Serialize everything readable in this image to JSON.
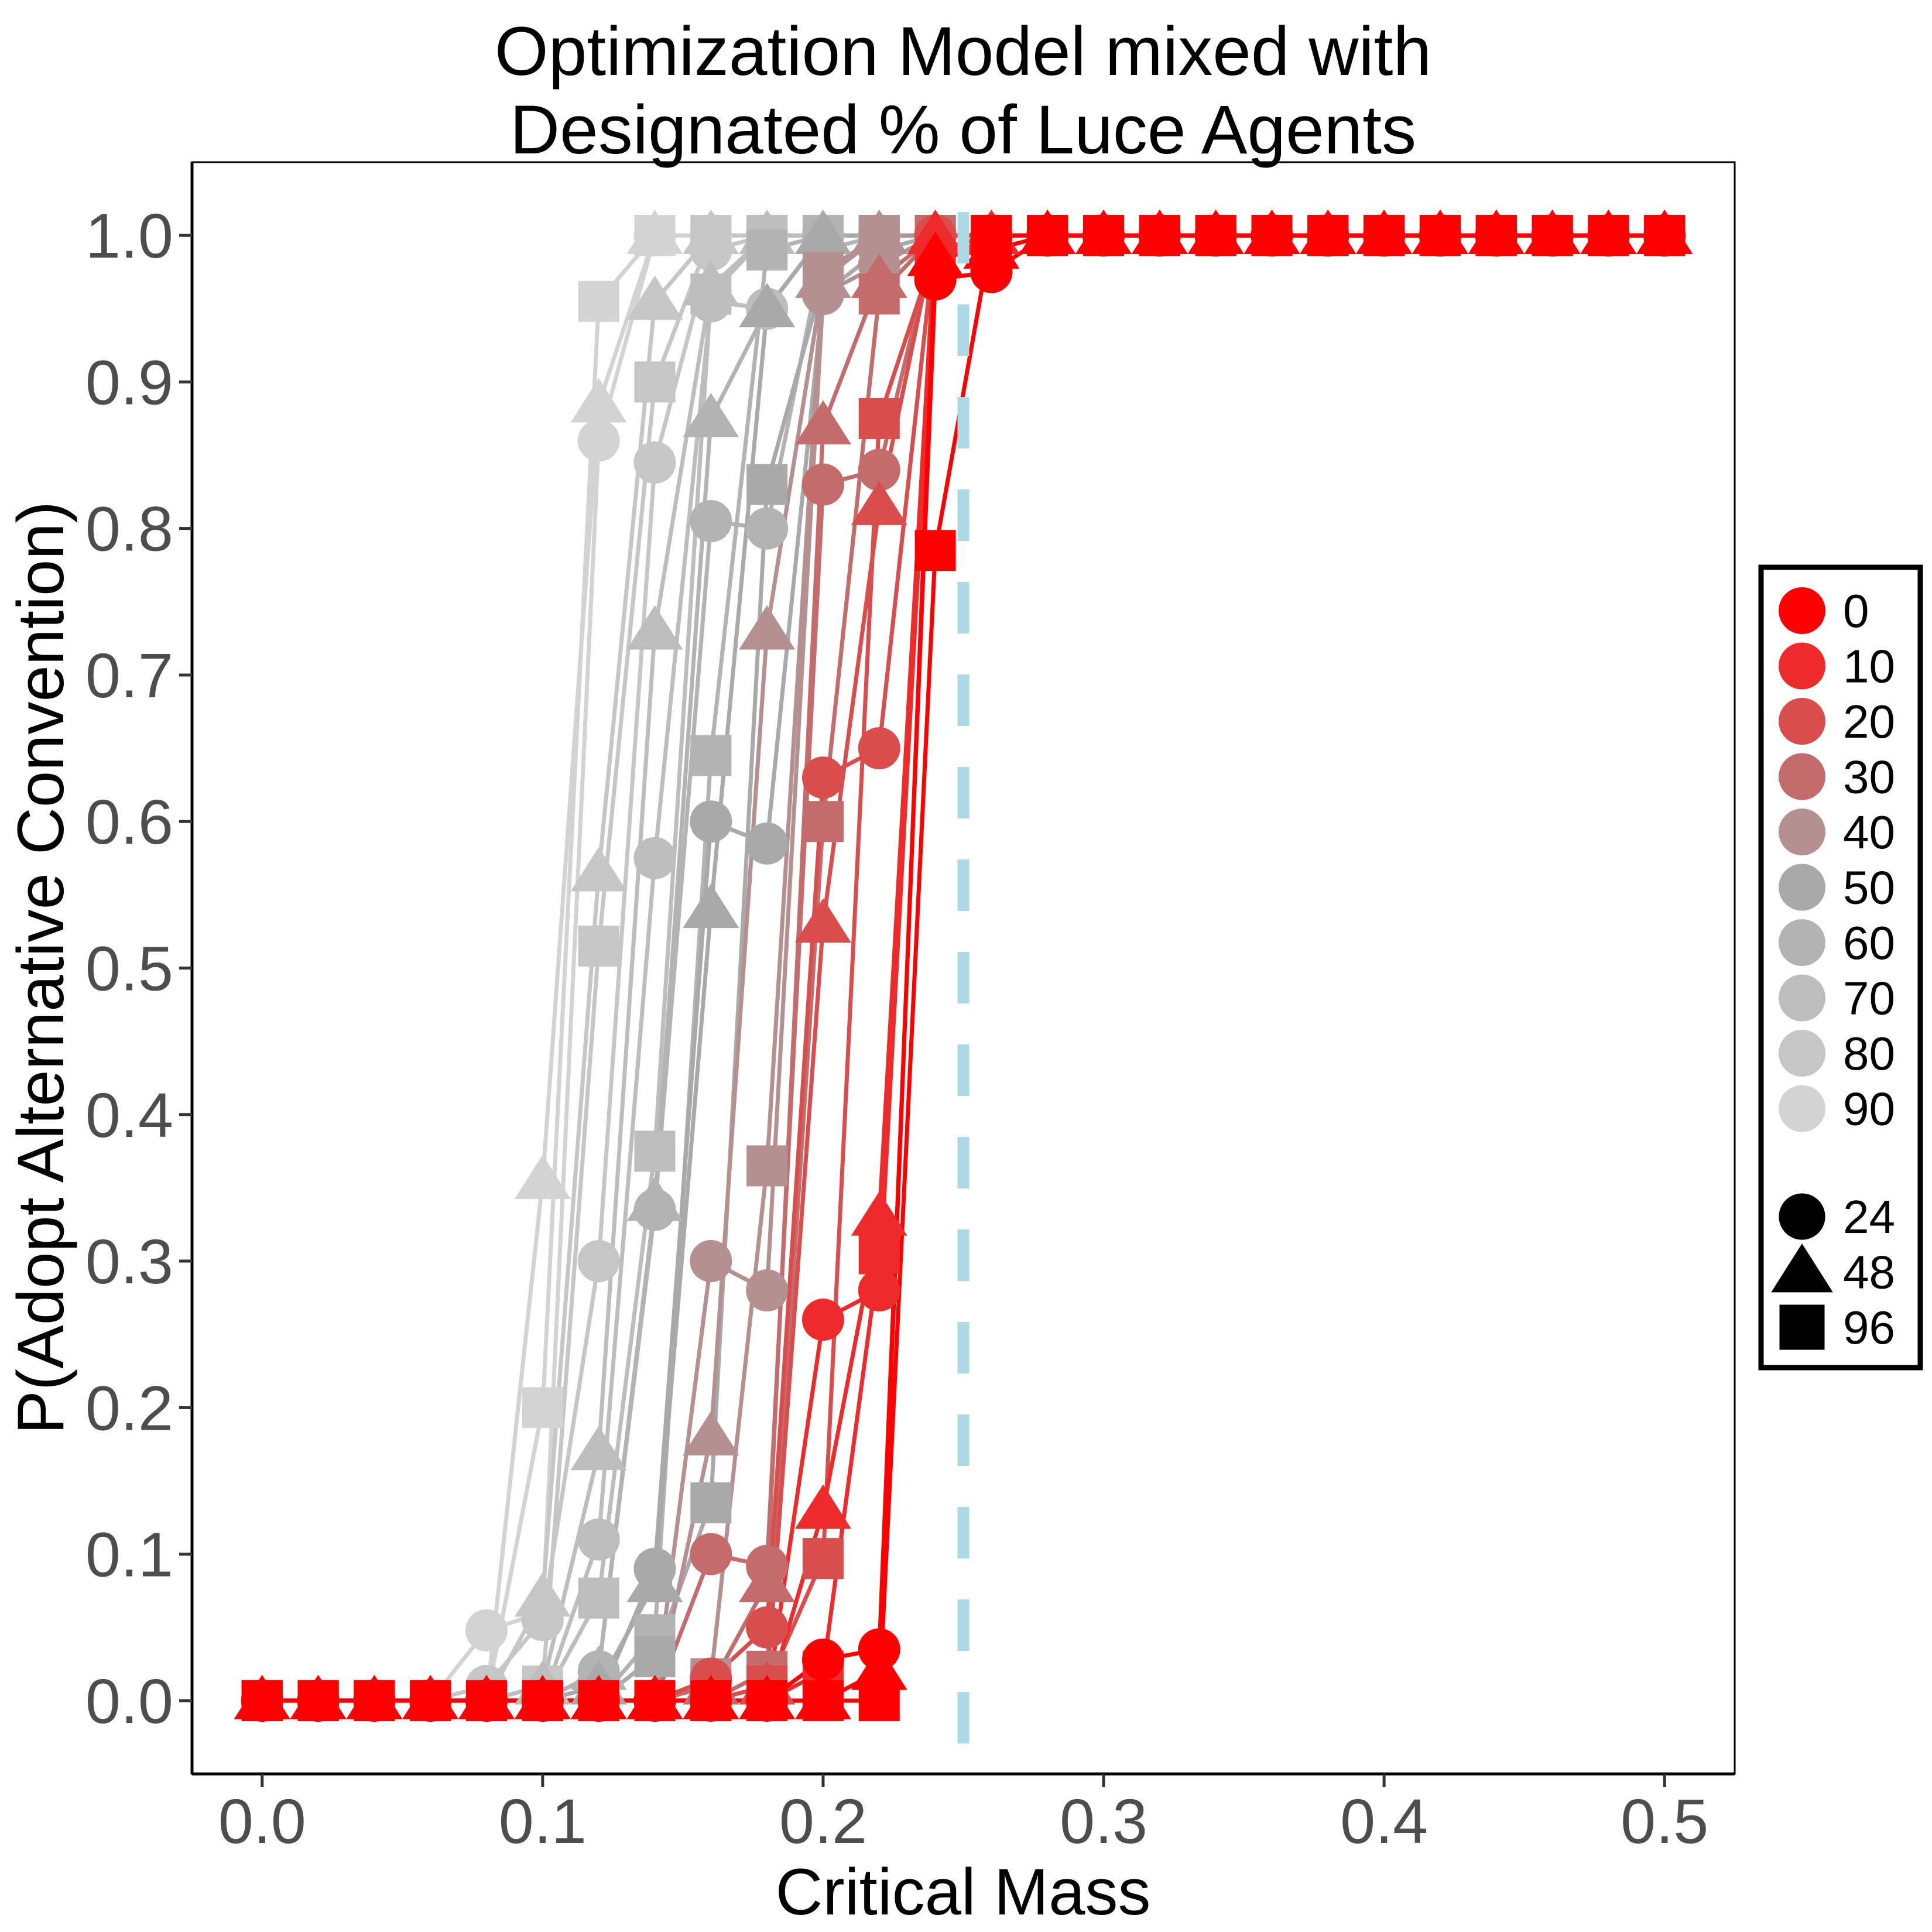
{
  "chart_data": {
    "type": "line",
    "title": [
      "Optimization Model mixed with",
      "Designated % of Luce Agents"
    ],
    "xlabel": "Critical Mass",
    "ylabel": "P(Adopt Alternative Convention)",
    "xlim": [
      -0.025,
      0.525
    ],
    "ylim": [
      -0.05,
      1.05
    ],
    "x_ticks": [
      0.0,
      0.1,
      0.2,
      0.3,
      0.4,
      0.5
    ],
    "x_tick_labels": [
      "0.0",
      "0.1",
      "0.2",
      "0.3",
      "0.4",
      "0.5"
    ],
    "y_ticks": [
      0.0,
      0.1,
      0.2,
      0.3,
      0.4,
      0.5,
      0.6,
      0.7,
      0.8,
      0.9,
      1.0
    ],
    "y_tick_labels": [
      "0.0",
      "0.1",
      "0.2",
      "0.3",
      "0.4",
      "0.5",
      "0.6",
      "0.7",
      "0.8",
      "0.9",
      "1.0"
    ],
    "grid": false,
    "legend_position": "right",
    "reference_line": {
      "x": 0.25,
      "style": "dashed",
      "color": "#add8e6"
    },
    "x": [
      0.0,
      0.02,
      0.04,
      0.06,
      0.08,
      0.1,
      0.12,
      0.14,
      0.16,
      0.18,
      0.2,
      0.22,
      0.24,
      0.26,
      0.28,
      0.3,
      0.32,
      0.34,
      0.36,
      0.38,
      0.4,
      0.42,
      0.44,
      0.46,
      0.48,
      0.5
    ],
    "color_legend": [
      {
        "label": "0",
        "color": "#ff0000"
      },
      {
        "label": "10",
        "color": "#ed2b2b"
      },
      {
        "label": "20",
        "color": "#da4d4d"
      },
      {
        "label": "30",
        "color": "#c46b6b"
      },
      {
        "label": "40",
        "color": "#b49090"
      },
      {
        "label": "50",
        "color": "#a9a9a9"
      },
      {
        "label": "60",
        "color": "#b3b3b3"
      },
      {
        "label": "70",
        "color": "#bdbdbd"
      },
      {
        "label": "80",
        "color": "#c6c6c6"
      },
      {
        "label": "90",
        "color": "#d3d3d3"
      }
    ],
    "shape_legend": [
      {
        "label": "24",
        "shape": "circle"
      },
      {
        "label": "48",
        "shape": "triangle"
      },
      {
        "label": "96",
        "shape": "square"
      }
    ],
    "series": [
      {
        "luce_pct": "0",
        "size": "24",
        "values": [
          0,
          0,
          0,
          0,
          0,
          0,
          0,
          0,
          0,
          0,
          0.028,
          0.035,
          0.97,
          0.975,
          1,
          1,
          1,
          1,
          1,
          1,
          1,
          1,
          1,
          1,
          1,
          1
        ]
      },
      {
        "luce_pct": "0",
        "size": "48",
        "values": [
          0,
          0,
          0,
          0,
          0,
          0,
          0,
          0,
          0,
          0,
          0,
          0.02,
          0.985,
          0.99,
          1,
          1,
          1,
          1,
          1,
          1,
          1,
          1,
          1,
          1,
          1,
          1
        ]
      },
      {
        "luce_pct": "0",
        "size": "96",
        "values": [
          0,
          0,
          0,
          0,
          0,
          0,
          0,
          0,
          0,
          0,
          0,
          0,
          0.785,
          1,
          1,
          1,
          1,
          1,
          1,
          1,
          1,
          1,
          1,
          1,
          1,
          1
        ]
      },
      {
        "luce_pct": "10",
        "size": "24",
        "values": [
          0,
          0,
          0,
          0,
          0,
          0,
          0,
          0,
          0,
          0,
          0.26,
          0.28,
          0.99,
          1,
          1,
          1,
          1,
          1,
          1,
          1,
          1,
          1,
          1,
          1,
          1,
          1
        ]
      },
      {
        "luce_pct": "10",
        "size": "48",
        "values": [
          0,
          0,
          0,
          0,
          0,
          0,
          0,
          0,
          0,
          0,
          0.13,
          0.33,
          1,
          1,
          1,
          1,
          1,
          1,
          1,
          1,
          1,
          1,
          1,
          1,
          1,
          1
        ]
      },
      {
        "luce_pct": "10",
        "size": "96",
        "values": [
          0,
          0,
          0,
          0,
          0,
          0,
          0,
          0,
          0,
          0,
          0.02,
          0.305,
          0.98,
          1,
          1,
          1,
          1,
          1,
          1,
          1,
          1,
          1,
          1,
          1,
          1,
          1
        ]
      },
      {
        "luce_pct": "20",
        "size": "24",
        "values": [
          0,
          0,
          0,
          0,
          0,
          0,
          0,
          0,
          0.015,
          0.05,
          0.63,
          0.65,
          1,
          1,
          1,
          1,
          1,
          1,
          1,
          1,
          1,
          1,
          1,
          1,
          1,
          1
        ]
      },
      {
        "luce_pct": "20",
        "size": "48",
        "values": [
          0,
          0,
          0,
          0,
          0,
          0,
          0,
          0,
          0,
          0.01,
          0.53,
          0.815,
          1,
          1,
          1,
          1,
          1,
          1,
          1,
          1,
          1,
          1,
          1,
          1,
          1,
          1
        ]
      },
      {
        "luce_pct": "20",
        "size": "96",
        "values": [
          0,
          0,
          0,
          0,
          0,
          0,
          0,
          0,
          0,
          0.01,
          0.097,
          0.875,
          0.99,
          1,
          1,
          1,
          1,
          1,
          1,
          1,
          1,
          1,
          1,
          1,
          1,
          1
        ]
      },
      {
        "luce_pct": "30",
        "size": "24",
        "values": [
          0,
          0,
          0,
          0,
          0,
          0,
          0,
          0,
          0.1,
          0.092,
          0.83,
          0.84,
          1,
          1,
          1,
          1,
          1,
          1,
          1,
          1,
          1,
          1,
          1,
          1,
          1,
          1
        ]
      },
      {
        "luce_pct": "30",
        "size": "48",
        "values": [
          0,
          0,
          0,
          0,
          0,
          0,
          0,
          0,
          0.01,
          0.08,
          0.87,
          0.97,
          1,
          1,
          1,
          1,
          1,
          1,
          1,
          1,
          1,
          1,
          1,
          1,
          1,
          1
        ]
      },
      {
        "luce_pct": "30",
        "size": "96",
        "values": [
          0,
          0,
          0,
          0,
          0,
          0,
          0,
          0,
          0,
          0.02,
          0.6,
          0.96,
          1,
          1,
          1,
          1,
          1,
          1,
          1,
          1,
          1,
          1,
          1,
          1,
          1,
          1
        ]
      },
      {
        "luce_pct": "40",
        "size": "24",
        "values": [
          0,
          0,
          0,
          0,
          0,
          0,
          0,
          0,
          0.3,
          0.28,
          0.96,
          0.98,
          1,
          1,
          1,
          1,
          1,
          1,
          1,
          1,
          1,
          1,
          1,
          1,
          1,
          1
        ]
      },
      {
        "luce_pct": "40",
        "size": "48",
        "values": [
          0,
          0,
          0,
          0,
          0,
          0,
          0,
          0,
          0.18,
          0.73,
          0.97,
          1,
          1,
          1,
          1,
          1,
          1,
          1,
          1,
          1,
          1,
          1,
          1,
          1,
          1,
          1
        ]
      },
      {
        "luce_pct": "40",
        "size": "96",
        "values": [
          0,
          0,
          0,
          0,
          0,
          0,
          0,
          0,
          0.015,
          0.365,
          0.975,
          1,
          1,
          1,
          1,
          1,
          1,
          1,
          1,
          1,
          1,
          1,
          1,
          1,
          1,
          1
        ]
      },
      {
        "luce_pct": "50",
        "size": "24",
        "values": [
          0,
          0,
          0,
          0,
          0,
          0,
          0,
          0.09,
          0.6,
          0.585,
          0.96,
          0.99,
          1,
          1,
          1,
          1,
          1,
          1,
          1,
          1,
          1,
          1,
          1,
          1,
          1,
          1
        ]
      },
      {
        "luce_pct": "50",
        "size": "48",
        "values": [
          0,
          0,
          0,
          0,
          0,
          0,
          0.01,
          0.08,
          0.54,
          0.95,
          1,
          1,
          1,
          1,
          1,
          1,
          1,
          1,
          1,
          1,
          1,
          1,
          1,
          1,
          1,
          1
        ]
      },
      {
        "luce_pct": "50",
        "size": "96",
        "values": [
          0,
          0,
          0,
          0,
          0,
          0,
          0,
          0.03,
          0.135,
          0.83,
          0.97,
          1,
          1,
          1,
          1,
          1,
          1,
          1,
          1,
          1,
          1,
          1,
          1,
          1,
          1,
          1
        ]
      },
      {
        "luce_pct": "60",
        "size": "24",
        "values": [
          0,
          0,
          0,
          0,
          0,
          0,
          0.02,
          0.335,
          0.805,
          0.8,
          0.99,
          1,
          1,
          1,
          1,
          1,
          1,
          1,
          1,
          1,
          1,
          1,
          1,
          1,
          1,
          1
        ]
      },
      {
        "luce_pct": "60",
        "size": "48",
        "values": [
          0,
          0,
          0,
          0,
          0,
          0,
          0.02,
          0.34,
          0.875,
          0.95,
          1,
          1,
          1,
          1,
          1,
          1,
          1,
          1,
          1,
          1,
          1,
          1,
          1,
          1,
          1,
          1
        ]
      },
      {
        "luce_pct": "60",
        "size": "96",
        "values": [
          0,
          0,
          0,
          0,
          0,
          0,
          0,
          0.045,
          0.645,
          0.99,
          1,
          1,
          1,
          1,
          1,
          1,
          1,
          1,
          1,
          1,
          1,
          1,
          1,
          1,
          1,
          1
        ]
      },
      {
        "luce_pct": "70",
        "size": "24",
        "values": [
          0,
          0,
          0,
          0,
          0,
          0,
          0.11,
          0.575,
          0.955,
          0.95,
          1,
          1,
          1,
          1,
          1,
          1,
          1,
          1,
          1,
          1,
          1,
          1,
          1,
          1,
          1,
          1
        ]
      },
      {
        "luce_pct": "70",
        "size": "48",
        "values": [
          0,
          0,
          0,
          0,
          0,
          0.01,
          0.17,
          0.73,
          0.965,
          1,
          1,
          1,
          1,
          1,
          1,
          1,
          1,
          1,
          1,
          1,
          1,
          1,
          1,
          1,
          1,
          1
        ]
      },
      {
        "luce_pct": "70",
        "size": "96",
        "values": [
          0,
          0,
          0,
          0,
          0,
          0,
          0.07,
          0.375,
          0.96,
          1,
          1,
          1,
          1,
          1,
          1,
          1,
          1,
          1,
          1,
          1,
          1,
          1,
          1,
          1,
          1,
          1
        ]
      },
      {
        "luce_pct": "80",
        "size": "24",
        "values": [
          0,
          0,
          0,
          0,
          0.01,
          0.055,
          0.3,
          0.845,
          0.99,
          1,
          1,
          1,
          1,
          1,
          1,
          1,
          1,
          1,
          1,
          1,
          1,
          1,
          1,
          1,
          1,
          1
        ]
      },
      {
        "luce_pct": "80",
        "size": "48",
        "values": [
          0,
          0,
          0,
          0,
          0,
          0.07,
          0.565,
          0.955,
          1,
          1,
          1,
          1,
          1,
          1,
          1,
          1,
          1,
          1,
          1,
          1,
          1,
          1,
          1,
          1,
          1,
          1
        ]
      },
      {
        "luce_pct": "80",
        "size": "96",
        "values": [
          0,
          0,
          0,
          0,
          0,
          0.01,
          0.515,
          0.9,
          1,
          1,
          1,
          1,
          1,
          1,
          1,
          1,
          1,
          1,
          1,
          1,
          1,
          1,
          1,
          1,
          1,
          1
        ]
      },
      {
        "luce_pct": "90",
        "size": "24",
        "values": [
          0,
          0,
          0,
          0,
          0.048,
          0.06,
          0.86,
          1,
          1,
          1,
          1,
          1,
          1,
          1,
          1,
          1,
          1,
          1,
          1,
          1,
          1,
          1,
          1,
          1,
          1,
          1
        ]
      },
      {
        "luce_pct": "90",
        "size": "48",
        "values": [
          0,
          0,
          0,
          0,
          0,
          0.355,
          0.885,
          1,
          1,
          1,
          1,
          1,
          1,
          1,
          1,
          1,
          1,
          1,
          1,
          1,
          1,
          1,
          1,
          1,
          1,
          1
        ]
      },
      {
        "luce_pct": "90",
        "size": "96",
        "values": [
          0,
          0,
          0,
          0,
          0,
          0.2,
          0.955,
          1,
          1,
          1,
          1,
          1,
          1,
          1,
          1,
          1,
          1,
          1,
          1,
          1,
          1,
          1,
          1,
          1,
          1,
          1
        ]
      }
    ]
  }
}
